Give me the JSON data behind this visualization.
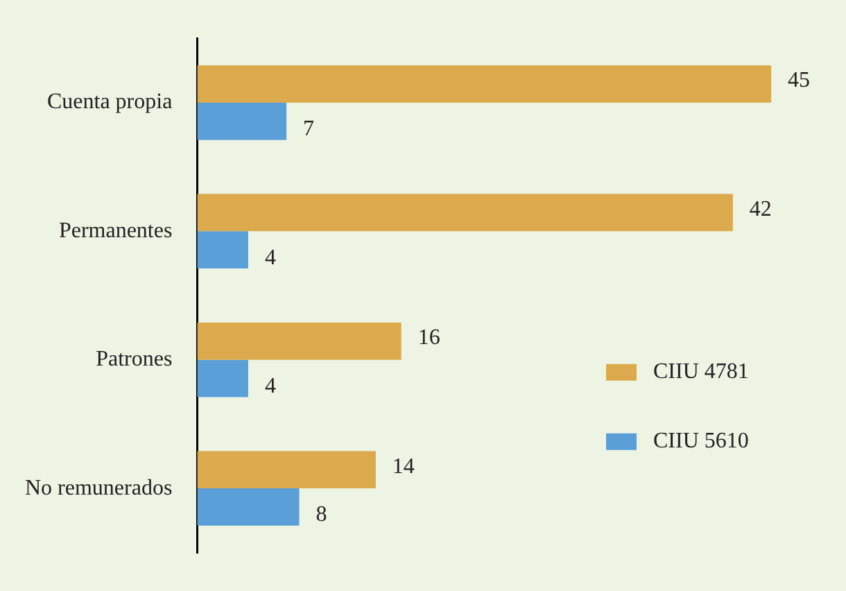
{
  "chart_data": {
    "type": "bar",
    "orientation": "horizontal",
    "categories": [
      "Cuenta propia",
      "Permanentes",
      "Patrones",
      "No remunerados"
    ],
    "series": [
      {
        "name": "CIIU 4781",
        "color": "#dcaa4c",
        "values": [
          45,
          42,
          16,
          14
        ]
      },
      {
        "name": "CIIU 5610",
        "color": "#5b9fd8",
        "values": [
          7,
          4,
          4,
          8
        ]
      }
    ],
    "data_labels": true,
    "legend": "bottom right"
  }
}
